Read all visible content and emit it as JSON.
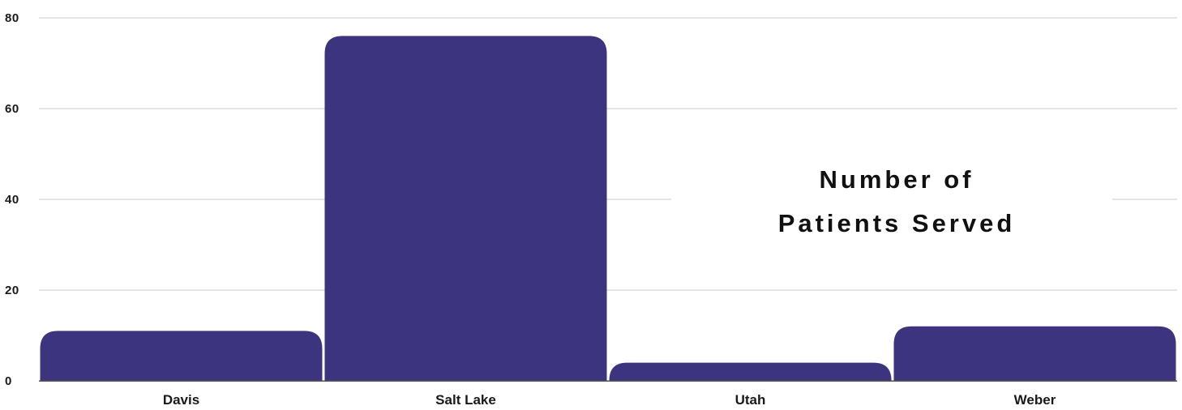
{
  "chart_data": {
    "type": "bar",
    "title_lines": [
      "Number of",
      "Patients Served"
    ],
    "categories": [
      "Davis",
      "Salt Lake",
      "Utah",
      "Weber"
    ],
    "values": [
      11,
      76,
      4,
      12
    ],
    "ylim": [
      0,
      80
    ],
    "yticks": [
      0,
      20,
      40,
      60,
      80
    ],
    "grid": true,
    "xlabel": "",
    "ylabel": "",
    "colors": {
      "bar": "#3c347f",
      "grid": "#c8c8c8",
      "baseline": "#555555",
      "text": "#1a1a1a"
    }
  }
}
